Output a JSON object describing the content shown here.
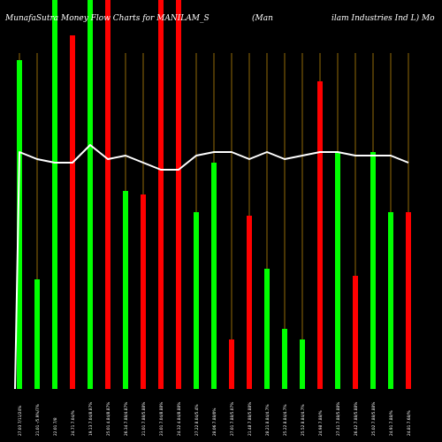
{
  "chart_data": {
    "type": "bar",
    "title_left": "MunafaSutra  Money Flow  Charts for MANILAM_S",
    "title_center": "(Man",
    "title_right": "ilam Industries Ind L) Mo",
    "categories": [
      "27.03 7/11/24%",
      "21.01 -/5.9%/7%",
      "22.01 7/8",
      "24.71 7.04/%",
      "19.13 7.04/8.87%",
      "25.01 4.84/8.87%",
      "26.34 7.88/4.87%",
      "21.01 7.88/5.88%",
      "23.01 7.04/8.88%",
      "24.32 4.84/8.88%",
      "27.22 8.04/5.4%",
      "28.06 7.88/0%",
      "27.01 7.88/5.07%",
      "21.48 7.88/5.88%",
      "28.21 8.84/4.7%",
      "25.22 8.84/4.7%",
      "25.52 8.84/4.7%",
      "24.98 7.88/%",
      "27.41 7.88/5.88%",
      "26.42 7.88/5.88%",
      "25.02 7.88/5.88%",
      "24.91 7.88/%",
      "24.81 7.68/%"
    ],
    "values": [
      93,
      31,
      110,
      100,
      110,
      110,
      56,
      55,
      110,
      110,
      50,
      64,
      14,
      49,
      34,
      17,
      14,
      87,
      67,
      32,
      67,
      50,
      50
    ],
    "directions": [
      "up",
      "up",
      "up",
      "down",
      "up",
      "down",
      "up",
      "down",
      "down",
      "down",
      "up",
      "up",
      "down",
      "down",
      "up",
      "up",
      "up",
      "down",
      "up",
      "down",
      "up",
      "up",
      "down"
    ],
    "line": [
      67,
      65,
      64,
      64,
      69,
      65,
      66,
      64,
      62,
      62,
      66,
      67,
      67,
      65,
      67,
      65,
      66,
      67,
      67,
      66,
      66,
      66,
      64
    ],
    "ylim": [
      0,
      110
    ],
    "colors": {
      "up": "#00ff00",
      "down": "#ff0000",
      "line": "#ffffff",
      "grid": "#b8860b",
      "background": "#000000"
    }
  }
}
